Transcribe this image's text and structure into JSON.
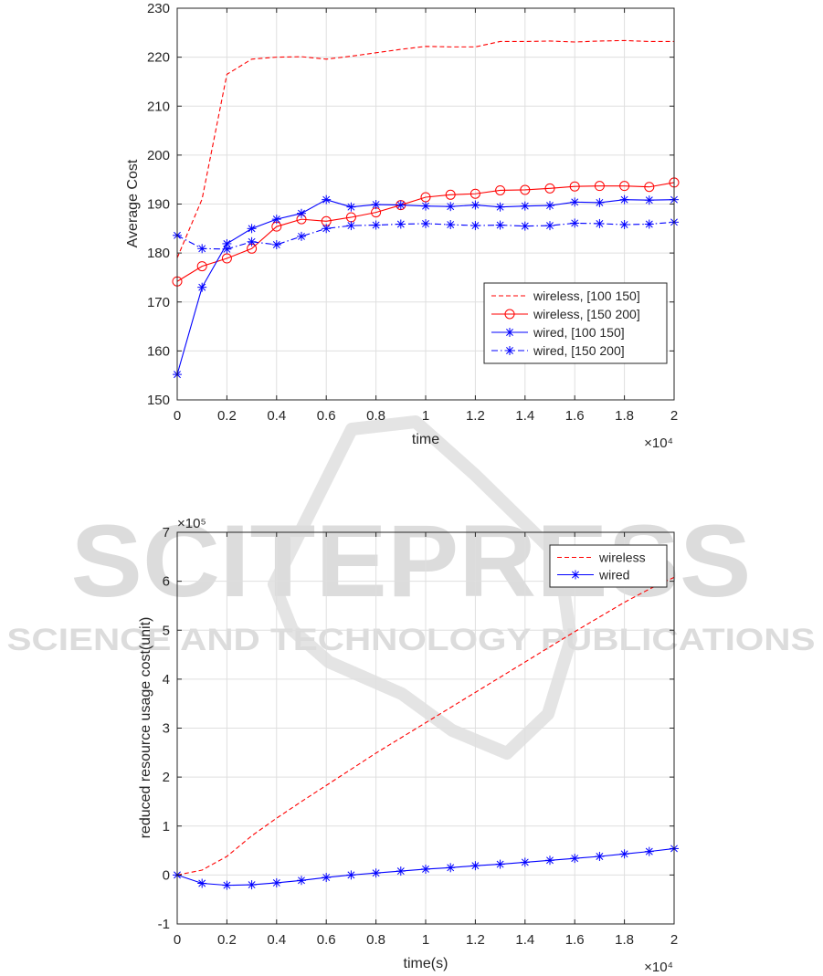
{
  "watermark": {
    "brand": "SCITEPRESS",
    "tagline": "SCIENCE AND TECHNOLOGY PUBLICATIONS",
    "colors": {
      "text": "#dcdcdc",
      "logo": "#e4e4e4"
    }
  },
  "colors": {
    "wireless": "#ff0000",
    "wired": "#0000ff",
    "axis": "#262626",
    "grid": "#dfdfdf"
  },
  "chart_data": [
    {
      "type": "line",
      "title": "",
      "xlabel": "time",
      "ylabel": "Average Cost",
      "x_exponent_label": "×10⁴",
      "xlim": [
        0,
        20000
      ],
      "ylim": [
        150,
        230
      ],
      "x_ticks": [
        0,
        2000,
        4000,
        6000,
        8000,
        10000,
        12000,
        14000,
        16000,
        18000,
        20000
      ],
      "x_tick_labels": [
        "0",
        "0.2",
        "0.4",
        "0.6",
        "0.8",
        "1",
        "1.2",
        "1.4",
        "1.6",
        "1.8",
        "2"
      ],
      "y_ticks": [
        150,
        160,
        170,
        180,
        190,
        200,
        210,
        220,
        230
      ],
      "grid": true,
      "legend_position": "lower-right",
      "x": [
        0,
        1000,
        2000,
        3000,
        4000,
        5000,
        6000,
        7000,
        8000,
        9000,
        10000,
        11000,
        12000,
        13000,
        14000,
        15000,
        16000,
        17000,
        18000,
        19000,
        20000
      ],
      "series": [
        {
          "name": "wireless, [100 150]",
          "color": "#ff0000",
          "style": "dashed",
          "marker": "none",
          "values": [
            179,
            191,
            216.5,
            219.6,
            220.0,
            220.1,
            219.6,
            220.2,
            220.9,
            221.6,
            222.2,
            222.1,
            222.1,
            223.2,
            223.2,
            223.3,
            223.1,
            223.3,
            223.4,
            223.2,
            223.2
          ]
        },
        {
          "name": "wireless, [150 200]",
          "color": "#ff0000",
          "style": "solid",
          "marker": "circle",
          "values": [
            174.2,
            177.3,
            178.9,
            180.9,
            185.4,
            186.9,
            186.5,
            187.3,
            188.3,
            189.8,
            191.4,
            191.9,
            192.1,
            192.8,
            192.9,
            193.2,
            193.6,
            193.7,
            193.7,
            193.5,
            194.4
          ]
        },
        {
          "name": "wired, [100 150]",
          "color": "#0000ff",
          "style": "solid",
          "marker": "asterisk",
          "values": [
            155.2,
            173.0,
            181.9,
            185.0,
            186.9,
            188.1,
            190.9,
            189.4,
            189.9,
            189.8,
            189.6,
            189.5,
            189.8,
            189.4,
            189.6,
            189.7,
            190.4,
            190.3,
            190.9,
            190.8,
            190.9
          ]
        },
        {
          "name": "wired, [150 200]",
          "color": "#0000ff",
          "style": "dashdot",
          "marker": "asterisk",
          "values": [
            183.6,
            180.9,
            180.8,
            182.3,
            181.7,
            183.4,
            185.0,
            185.6,
            185.7,
            185.9,
            186.0,
            185.8,
            185.6,
            185.7,
            185.5,
            185.6,
            186.1,
            186.0,
            185.8,
            185.9,
            186.3
          ]
        }
      ]
    },
    {
      "type": "line",
      "title": "",
      "xlabel": "time(s)",
      "ylabel": "reduced resource usage cost(unit)",
      "x_exponent_label": "×10⁴",
      "y_exponent_label": "×10⁵",
      "xlim": [
        0,
        20000
      ],
      "ylim": [
        -100000,
        700000
      ],
      "x_ticks": [
        0,
        2000,
        4000,
        6000,
        8000,
        10000,
        12000,
        14000,
        16000,
        18000,
        20000
      ],
      "x_tick_labels": [
        "0",
        "0.2",
        "0.4",
        "0.6",
        "0.8",
        "1",
        "1.2",
        "1.4",
        "1.6",
        "1.8",
        "2"
      ],
      "y_ticks": [
        -100000,
        0,
        100000,
        200000,
        300000,
        400000,
        500000,
        600000,
        700000
      ],
      "y_tick_labels": [
        "-1",
        "0",
        "1",
        "2",
        "3",
        "4",
        "5",
        "6",
        "7"
      ],
      "grid": true,
      "legend_position": "top-right",
      "x": [
        0,
        1000,
        2000,
        3000,
        4000,
        5000,
        6000,
        7000,
        8000,
        9000,
        10000,
        11000,
        12000,
        13000,
        14000,
        15000,
        16000,
        17000,
        18000,
        19000,
        20000
      ],
      "series": [
        {
          "name": "wireless",
          "color": "#ff0000",
          "style": "dashed",
          "marker": "none",
          "values": [
            0,
            10000,
            38000,
            80000,
            116000,
            150000,
            183000,
            216000,
            249000,
            280000,
            311000,
            342000,
            373000,
            404000,
            435000,
            466000,
            497000,
            527000,
            557000,
            584000,
            608000
          ]
        },
        {
          "name": "wired",
          "color": "#0000ff",
          "style": "solid",
          "marker": "asterisk",
          "values": [
            0,
            -17000,
            -21000,
            -20000,
            -16000,
            -11000,
            -5000,
            0,
            4000,
            8000,
            12000,
            15000,
            19000,
            22000,
            26000,
            30000,
            34000,
            38000,
            43000,
            48000,
            54000
          ]
        }
      ]
    }
  ]
}
